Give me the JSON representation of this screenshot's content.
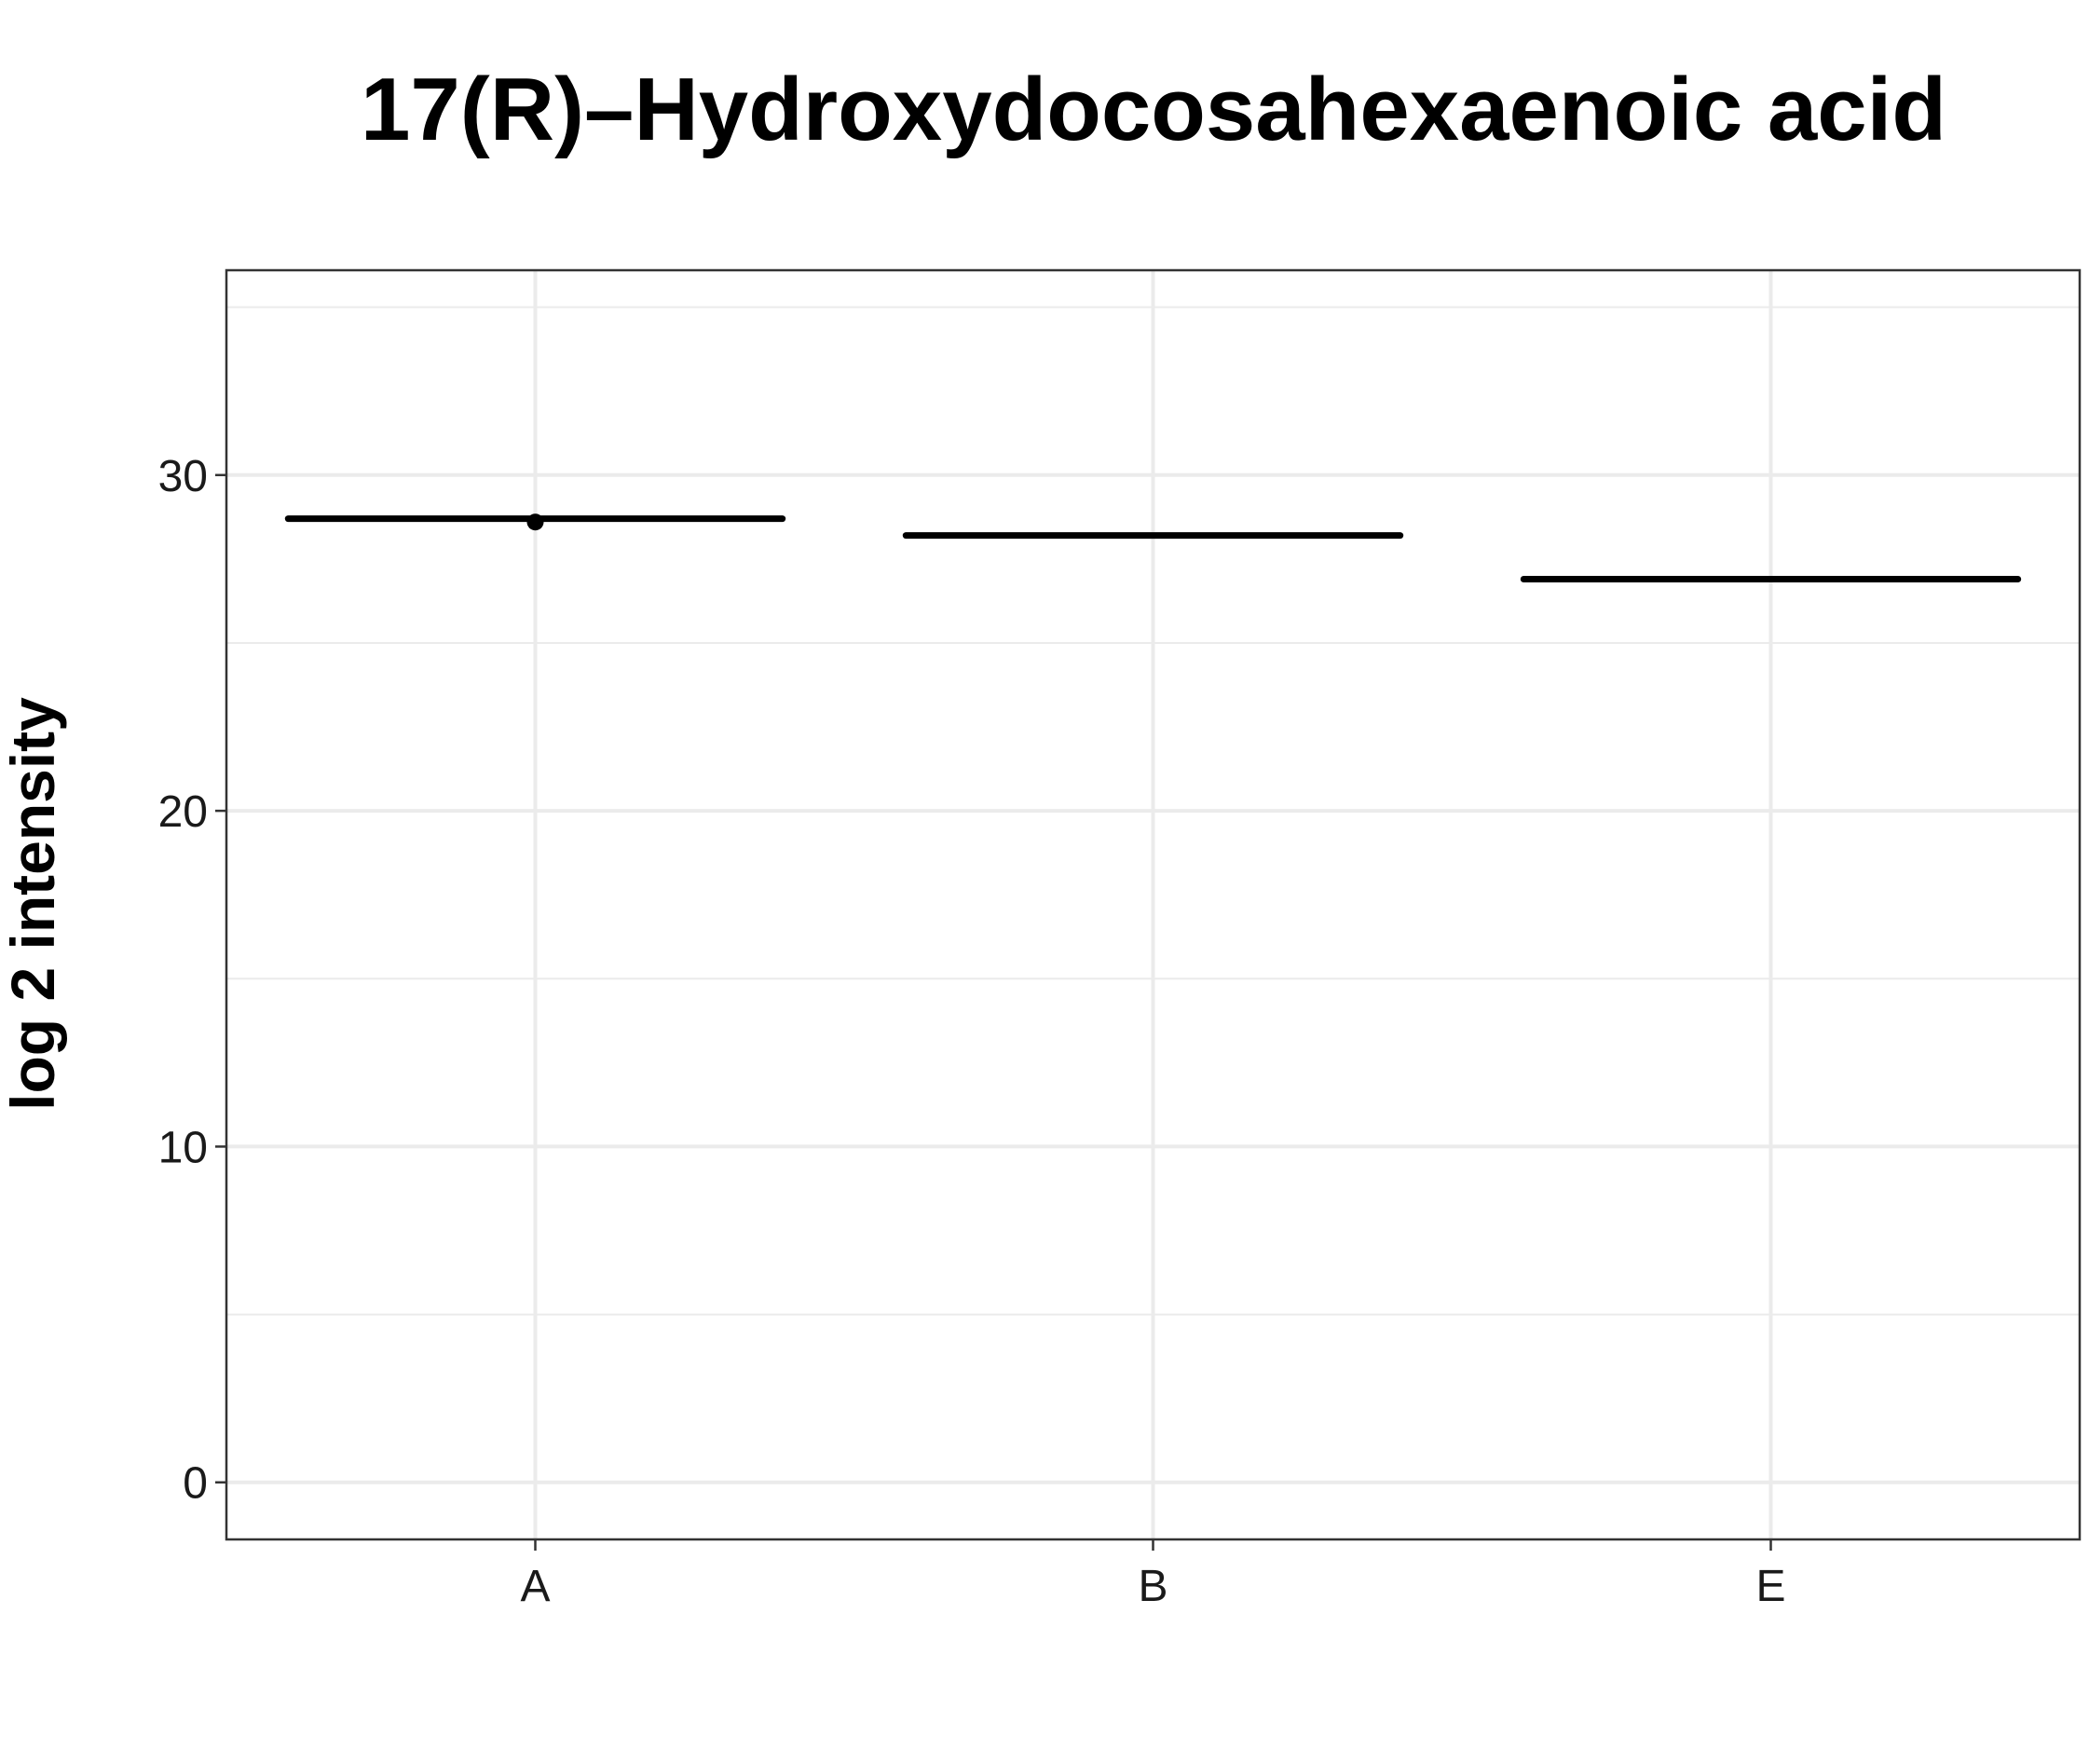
{
  "chart_data": {
    "type": "box",
    "title": "17(R)–Hydroxydocosahexaenoic acid",
    "xlabel": "",
    "ylabel": "log 2 intensity",
    "categories": [
      "A",
      "B",
      "E"
    ],
    "y_ticks": [
      "0",
      "10",
      "20",
      "30"
    ],
    "ylim": [
      -1.7,
      36.1
    ],
    "grid": true,
    "medians": [
      28.7,
      28.2,
      26.9
    ],
    "outliers": [
      {
        "category": "A",
        "y": 28.6
      }
    ],
    "colors": {
      "box": "#000000",
      "grid": "#ebebeb",
      "panel_border": "#333333",
      "text": "#000000"
    }
  }
}
